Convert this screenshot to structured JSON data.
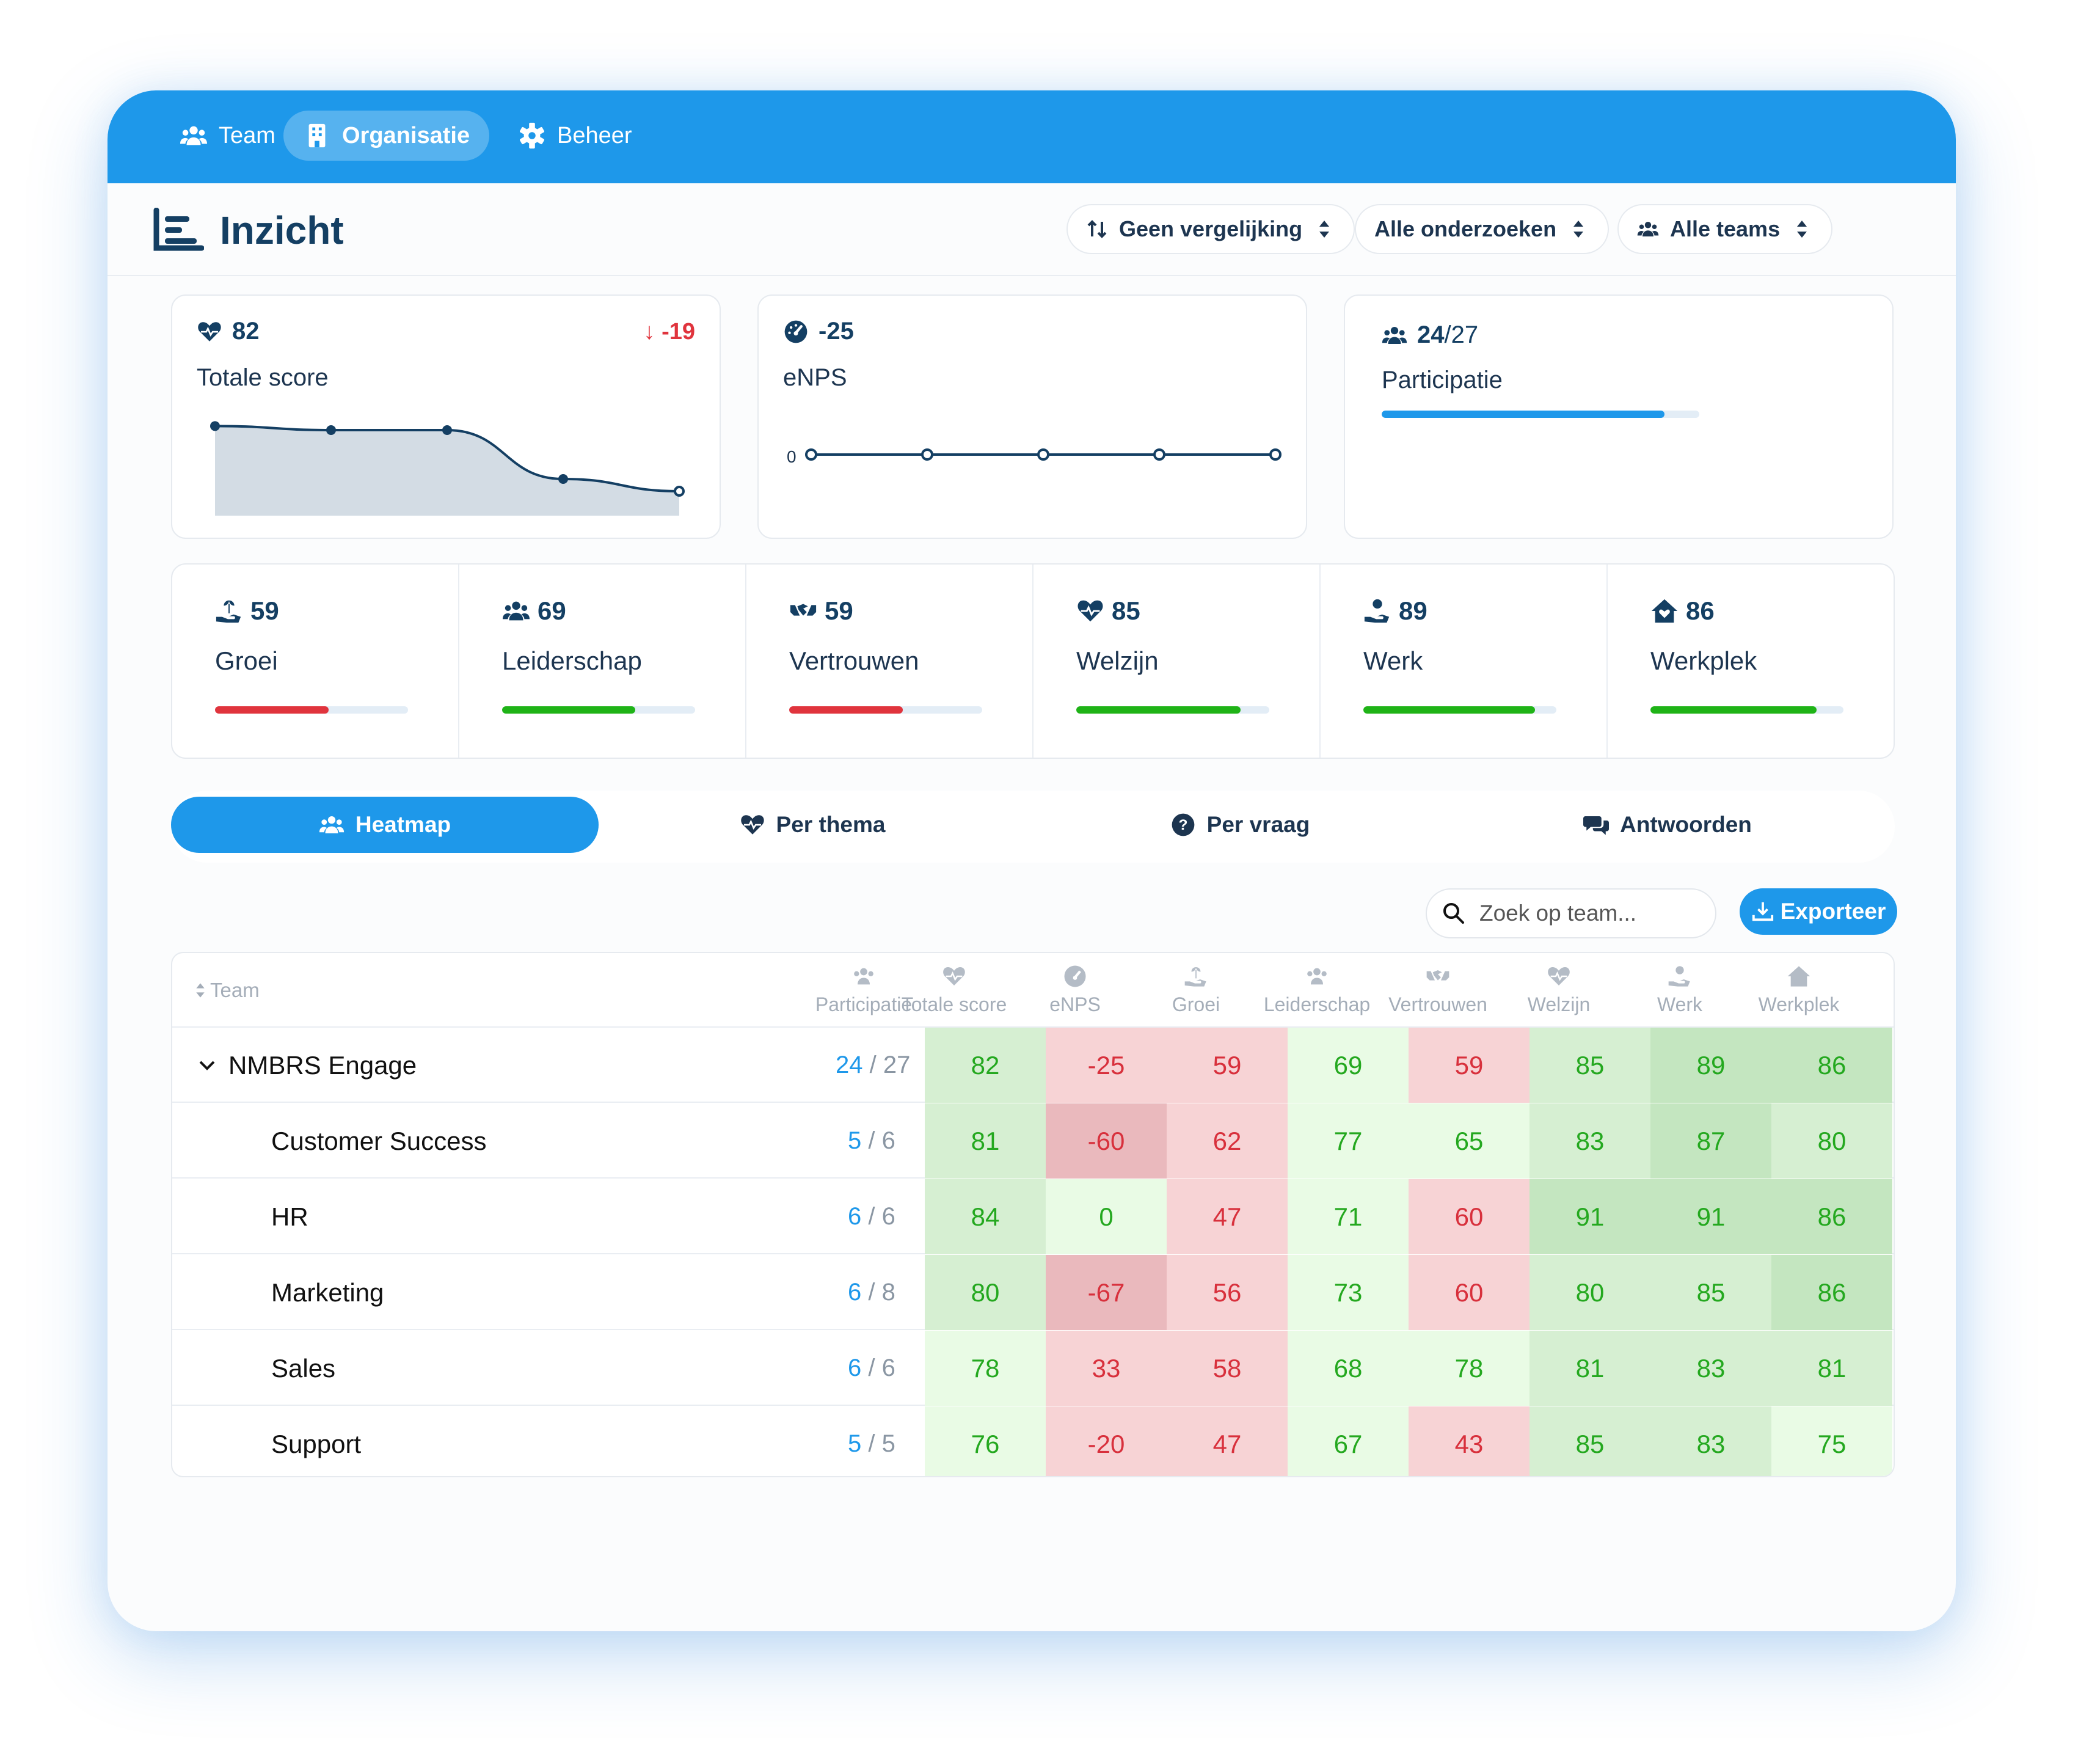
{
  "nav": {
    "items": [
      {
        "label": "Team"
      },
      {
        "label": "Organisatie"
      },
      {
        "label": "Beheer"
      }
    ]
  },
  "header": {
    "title": "Inzicht",
    "filters": [
      {
        "label": "Geen vergelijking"
      },
      {
        "label": "Alle onderzoeken"
      },
      {
        "label": "Alle teams"
      }
    ]
  },
  "kpis": {
    "total": {
      "value": "82",
      "label": "Totale score",
      "delta": "-19"
    },
    "enps": {
      "value": "-25",
      "label": "eNPS",
      "axis_label": "0"
    },
    "participation": {
      "value": "24",
      "total": "/27",
      "label": "Participatie",
      "fraction": 0.89
    }
  },
  "chart_data": [
    {
      "type": "area",
      "title": "",
      "x": [
        1,
        2,
        3,
        4,
        5
      ],
      "values": [
        82,
        81,
        81,
        69,
        66
      ]
    },
    {
      "type": "line",
      "title": "",
      "x": [
        1,
        2,
        3,
        4,
        5
      ],
      "values": [
        0,
        0,
        0,
        0,
        0
      ]
    }
  ],
  "themes": [
    {
      "value": "59",
      "label": "Groei",
      "score": 59,
      "color": "#e0343d"
    },
    {
      "value": "69",
      "label": "Leiderschap",
      "score": 69,
      "color": "#1fb317"
    },
    {
      "value": "59",
      "label": "Vertrouwen",
      "score": 59,
      "color": "#e0343d"
    },
    {
      "value": "85",
      "label": "Welzijn",
      "score": 85,
      "color": "#1fb317"
    },
    {
      "value": "89",
      "label": "Werk",
      "score": 89,
      "color": "#1fb317"
    },
    {
      "value": "86",
      "label": "Werkplek",
      "score": 86,
      "color": "#1fb317"
    }
  ],
  "tabs": [
    {
      "label": "Heatmap"
    },
    {
      "label": "Per thema"
    },
    {
      "label": "Per vraag"
    },
    {
      "label": "Antwoorden"
    }
  ],
  "search": {
    "placeholder": "Zoek op team..."
  },
  "export": {
    "label": "Exporteer"
  },
  "table": {
    "team_header": "Team",
    "columns": [
      "Participatie",
      "Totale score",
      "eNPS",
      "Groei",
      "Leiderschap",
      "Vertrouwen",
      "Welzijn",
      "Werk",
      "Werkplek"
    ],
    "rows": [
      {
        "name": "NMBRS Engage",
        "part_a": "24",
        "part_b": "27",
        "values": [
          "82",
          "-25",
          "59",
          "69",
          "59",
          "85",
          "89",
          "86"
        ]
      },
      {
        "name": "Customer Success",
        "part_a": "5",
        "part_b": "6",
        "values": [
          "81",
          "-60",
          "62",
          "77",
          "65",
          "83",
          "87",
          "80"
        ]
      },
      {
        "name": "HR",
        "part_a": "6",
        "part_b": "6",
        "values": [
          "84",
          "0",
          "47",
          "71",
          "60",
          "91",
          "91",
          "86"
        ]
      },
      {
        "name": "Marketing",
        "part_a": "6",
        "part_b": "8",
        "values": [
          "80",
          "-67",
          "56",
          "73",
          "60",
          "80",
          "85",
          "86"
        ]
      },
      {
        "name": "Sales",
        "part_a": "6",
        "part_b": "6",
        "values": [
          "78",
          "33",
          "58",
          "68",
          "78",
          "81",
          "83",
          "81"
        ]
      },
      {
        "name": "Support",
        "part_a": "5",
        "part_b": "5",
        "values": [
          "76",
          "-20",
          "47",
          "67",
          "43",
          "85",
          "83",
          "75"
        ]
      }
    ]
  },
  "colors": {
    "accent": "#1e98ea",
    "navy": "#143f63",
    "good": "#24a81f",
    "bad": "#d8303c"
  }
}
